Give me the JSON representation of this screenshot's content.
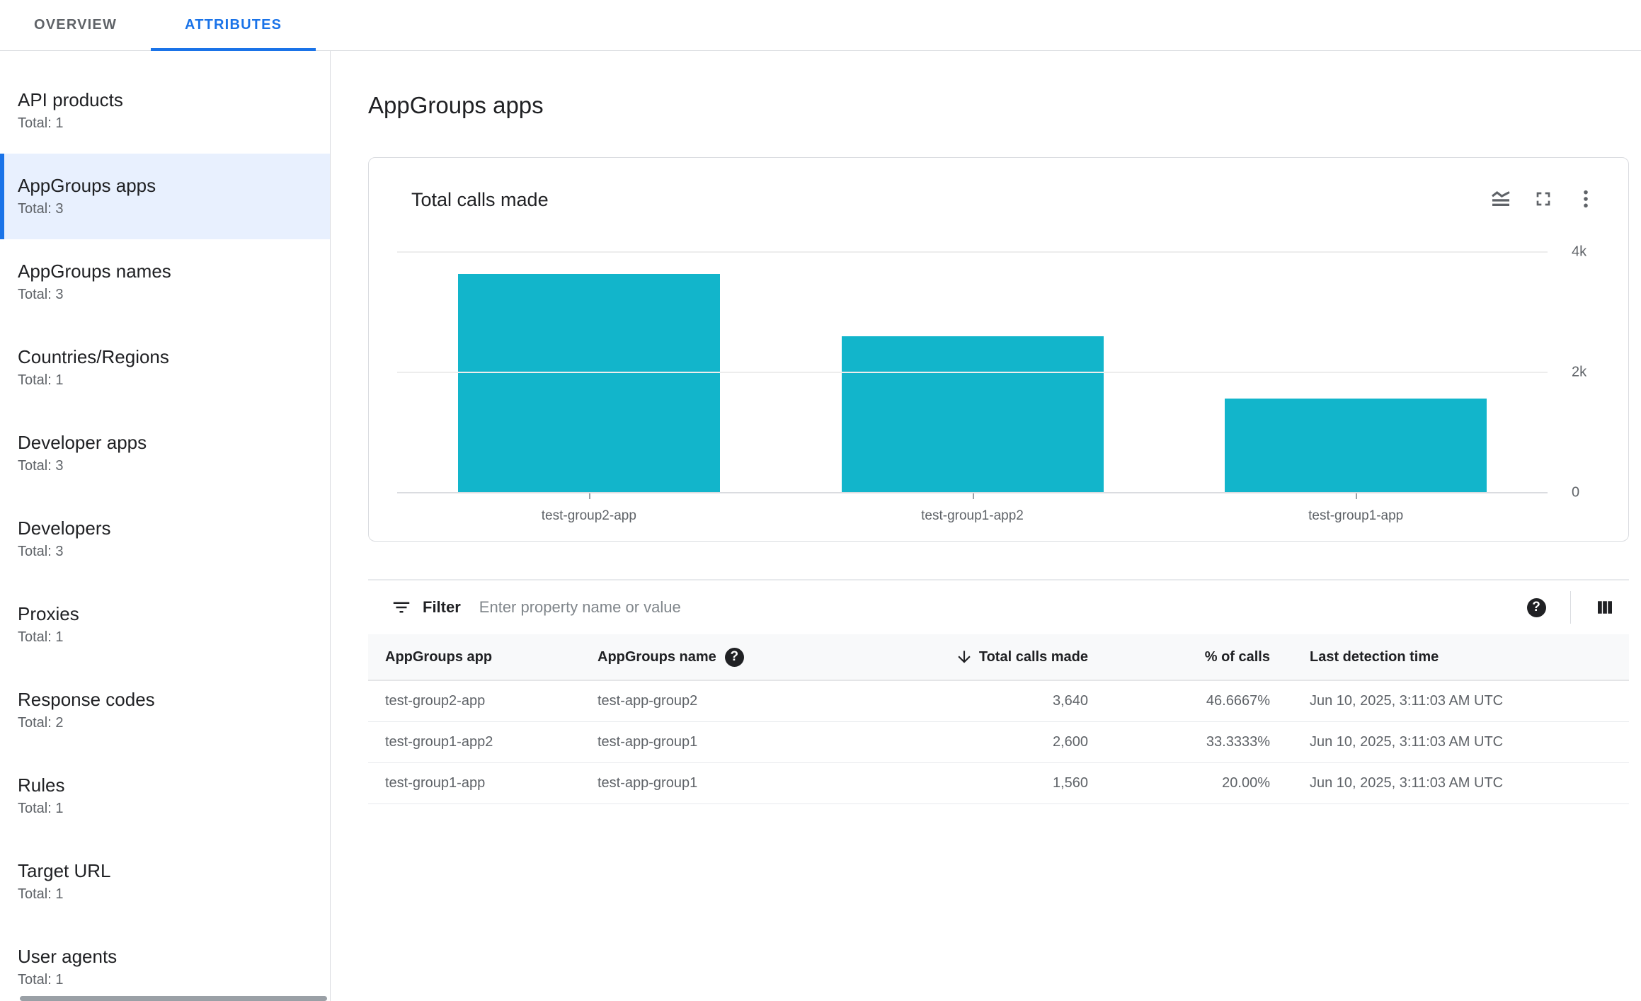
{
  "colors": {
    "accent": "#1a73e8",
    "bar": "#12b5cb",
    "selected_bg": "#e8f0fe"
  },
  "tabs": [
    {
      "label": "OVERVIEW",
      "active": false
    },
    {
      "label": "ATTRIBUTES",
      "active": true
    }
  ],
  "sidebar": {
    "items": [
      {
        "label": "API products",
        "total": "Total: 1",
        "selected": false
      },
      {
        "label": "AppGroups apps",
        "total": "Total: 3",
        "selected": true
      },
      {
        "label": "AppGroups names",
        "total": "Total: 3",
        "selected": false
      },
      {
        "label": "Countries/Regions",
        "total": "Total: 1",
        "selected": false
      },
      {
        "label": "Developer apps",
        "total": "Total: 3",
        "selected": false
      },
      {
        "label": "Developers",
        "total": "Total: 3",
        "selected": false
      },
      {
        "label": "Proxies",
        "total": "Total: 1",
        "selected": false
      },
      {
        "label": "Response codes",
        "total": "Total: 2",
        "selected": false
      },
      {
        "label": "Rules",
        "total": "Total: 1",
        "selected": false
      },
      {
        "label": "Target URL",
        "total": "Total: 1",
        "selected": false
      },
      {
        "label": "User agents",
        "total": "Total: 1",
        "selected": false
      }
    ]
  },
  "main": {
    "title": "AppGroups apps",
    "chart_card": {
      "title": "Total calls made",
      "icons": [
        "area-chart-icon",
        "fullscreen-icon",
        "more-vert-icon"
      ]
    },
    "filter": {
      "label": "Filter",
      "placeholder": "Enter property name or value",
      "icons": [
        "filter-list-icon",
        "help-icon",
        "view-columns-icon"
      ]
    },
    "table": {
      "columns": [
        {
          "label": "AppGroups app"
        },
        {
          "label": "AppGroups name",
          "help_icon": true
        },
        {
          "label": "Total calls made",
          "sorted": "desc"
        },
        {
          "label": "% of calls"
        },
        {
          "label": "Last detection time"
        }
      ],
      "rows": [
        {
          "app": "test-group2-app",
          "name": "test-app-group2",
          "calls": "3,640",
          "pct": "46.6667%",
          "time": "Jun 10, 2025, 3:11:03 AM UTC"
        },
        {
          "app": "test-group1-app2",
          "name": "test-app-group1",
          "calls": "2,600",
          "pct": "33.3333%",
          "time": "Jun 10, 2025, 3:11:03 AM UTC"
        },
        {
          "app": "test-group1-app",
          "name": "test-app-group1",
          "calls": "1,560",
          "pct": "20.00%",
          "time": "Jun 10, 2025, 3:11:03 AM UTC"
        }
      ]
    }
  },
  "chart_data": {
    "type": "bar",
    "title": "Total calls made",
    "categories": [
      "test-group2-app",
      "test-group1-app2",
      "test-group1-app"
    ],
    "values": [
      3640,
      2600,
      1560
    ],
    "xlabel": "",
    "ylabel": "",
    "ylim": [
      0,
      4000
    ],
    "ytick_labels": [
      "4k",
      "2k",
      "0"
    ],
    "ytick_values": [
      4000,
      2000,
      0
    ],
    "grid": true,
    "legend_position": "none",
    "bar_color": "#12b5cb"
  }
}
